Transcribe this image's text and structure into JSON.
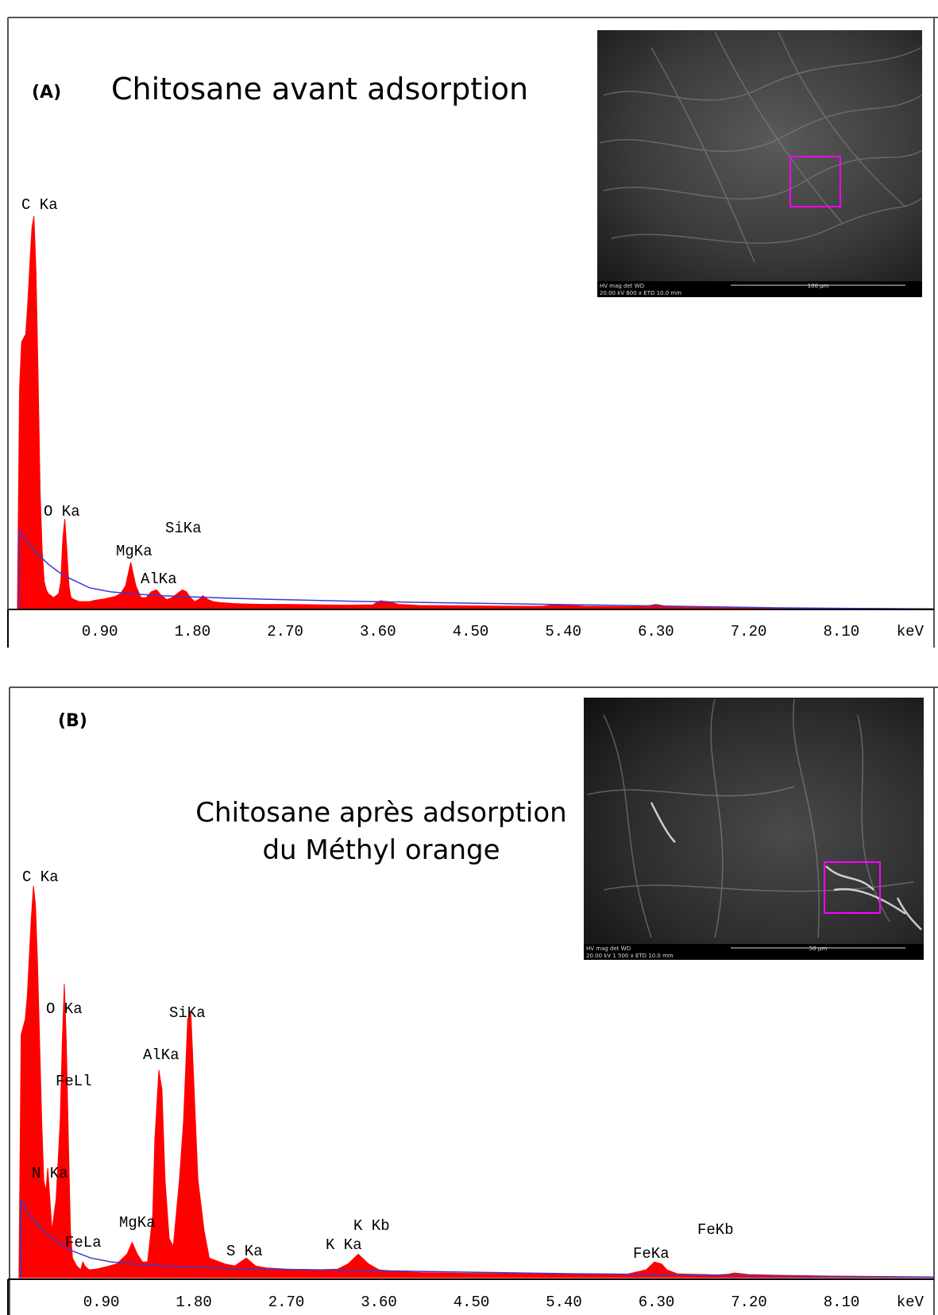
{
  "colors": {
    "spectrum_fill": "#ff0000",
    "background_curve": "#3a3ad0",
    "axis": "#000000",
    "roi_box": "#ff00ff"
  },
  "chart_data": [
    {
      "type": "area",
      "panel_label": "(A)",
      "title": "Chitosane avant adsorption",
      "xlabel": "keV",
      "ylabel": "",
      "x_ticks": [
        "0.90",
        "1.80",
        "2.70",
        "3.60",
        "4.50",
        "5.40",
        "6.30",
        "7.20",
        "8.10"
      ],
      "xlim": [
        0.1,
        9.0
      ],
      "ylim": [
        0,
        100
      ],
      "grid": false,
      "series": [
        {
          "x": [
            0.1,
            0.12,
            0.14,
            0.16,
            0.18,
            0.2,
            0.22,
            0.24,
            0.26,
            0.28,
            0.3,
            0.32,
            0.34,
            0.36,
            0.38,
            0.4,
            0.45,
            0.5,
            0.52,
            0.54,
            0.56,
            0.58,
            0.6,
            0.62,
            0.65,
            0.7,
            0.75,
            0.8,
            0.85,
            0.9,
            0.95,
            1.0,
            1.05,
            1.1,
            1.15,
            1.2,
            1.25,
            1.3,
            1.35,
            1.4,
            1.45,
            1.5,
            1.55,
            1.6,
            1.65,
            1.7,
            1.74,
            1.78,
            1.82,
            1.86,
            1.9,
            1.95,
            2.0,
            2.05,
            2.1,
            2.15,
            2.2,
            2.3,
            2.5,
            2.7,
            3.0,
            3.3,
            3.55,
            3.62,
            3.7,
            3.8,
            4.0,
            4.5,
            5.0,
            5.2,
            5.35,
            5.45,
            5.6,
            6.0,
            6.2,
            6.3,
            6.4,
            6.6,
            7.0,
            7.2,
            8.0,
            9.0
          ],
          "y": [
            2,
            56,
            68,
            69,
            70,
            78,
            88,
            97,
            100,
            86,
            60,
            30,
            15,
            7,
            5,
            4,
            3,
            4,
            7,
            18,
            23,
            15,
            6,
            3,
            2.5,
            2,
            2,
            2,
            2.3,
            2.5,
            2.7,
            3,
            3.3,
            4,
            6,
            12,
            6,
            3,
            3,
            4.5,
            5,
            3.5,
            2.5,
            3,
            4,
            5,
            4.5,
            3,
            2,
            2.5,
            3.5,
            2.5,
            2,
            1.8,
            1.7,
            1.6,
            1.5,
            1.4,
            1.3,
            1.3,
            1.2,
            1.1,
            1.2,
            2.2,
            2,
            1.3,
            1,
            0.9,
            0.8,
            0.8,
            1.3,
            1.1,
            0.8,
            0.7,
            0.8,
            1.3,
            0.8,
            0.6,
            0.5,
            0.4,
            0.3,
            0.2
          ]
        },
        {
          "x": [
            0.12,
            0.2,
            0.3,
            0.4,
            0.5,
            0.6,
            0.8,
            1.0,
            1.2,
            1.5,
            1.8,
            2.1,
            2.5,
            3.0,
            3.5,
            4.0,
            4.5,
            5.0,
            5.5,
            6.0,
            6.5,
            7.0,
            7.5,
            8.0,
            9.0
          ],
          "y": [
            20,
            17,
            14,
            11.5,
            9.5,
            8,
            5.5,
            4.5,
            4,
            3.5,
            3.2,
            2.9,
            2.6,
            2.3,
            2,
            1.8,
            1.6,
            1.4,
            1.2,
            1,
            0.8,
            0.6,
            0.4,
            0.3,
            0.1
          ]
        }
      ],
      "peak_labels": [
        {
          "text": "C Ka",
          "x": 0.3
        },
        {
          "text": "O Ka",
          "x": 0.56
        },
        {
          "text": "MgKa",
          "x": 1.25
        },
        {
          "text": "AlKa",
          "x": 1.49
        },
        {
          "text": "SiKa",
          "x": 1.74
        }
      ],
      "inset": {
        "scale_header": "HV  mag  det  WD",
        "scale_values": "20.00 kV  800 x  ETD  10.0 mm",
        "scale_bar": "100 µm"
      }
    },
    {
      "type": "area",
      "panel_label": "(B)",
      "title": "Chitosane après adsorption du Méthyl orange",
      "title_lines": [
        "Chitosane après adsorption",
        "du Méthyl orange"
      ],
      "xlabel": "keV",
      "ylabel": "",
      "x_ticks": [
        "0.90",
        "1.80",
        "2.70",
        "3.60",
        "4.50",
        "5.40",
        "6.30",
        "7.20",
        "8.10"
      ],
      "xlim": [
        0.1,
        9.0
      ],
      "ylim": [
        0,
        100
      ],
      "grid": false,
      "series": [
        {
          "x": [
            0.1,
            0.12,
            0.14,
            0.16,
            0.18,
            0.2,
            0.22,
            0.24,
            0.26,
            0.28,
            0.3,
            0.32,
            0.34,
            0.36,
            0.38,
            0.4,
            0.42,
            0.46,
            0.5,
            0.52,
            0.54,
            0.56,
            0.58,
            0.6,
            0.62,
            0.66,
            0.7,
            0.72,
            0.74,
            0.78,
            0.85,
            0.95,
            1.05,
            1.15,
            1.2,
            1.25,
            1.3,
            1.35,
            1.4,
            1.42,
            1.46,
            1.49,
            1.52,
            1.56,
            1.6,
            1.66,
            1.7,
            1.74,
            1.77,
            1.8,
            1.84,
            1.9,
            1.95,
            2.1,
            2.2,
            2.31,
            2.4,
            2.5,
            2.7,
            3.0,
            3.2,
            3.3,
            3.4,
            3.5,
            3.6,
            3.8,
            4.0,
            4.5,
            5.0,
            5.5,
            6.0,
            6.2,
            6.28,
            6.35,
            6.4,
            6.5,
            6.6,
            6.9,
            7.0,
            7.06,
            7.2,
            7.5,
            8.0,
            9.0
          ],
          "y": [
            2,
            62,
            64,
            66,
            72,
            82,
            92,
            100,
            95,
            80,
            60,
            40,
            25,
            22,
            28,
            20,
            12,
            20,
            40,
            60,
            75,
            60,
            35,
            12,
            5,
            3,
            2,
            4,
            3,
            2,
            2.2,
            2.8,
            3.5,
            6,
            9,
            6,
            4,
            4,
            16,
            35,
            53,
            48,
            25,
            10,
            8,
            25,
            40,
            66,
            68,
            50,
            25,
            12,
            5,
            3.5,
            3,
            5,
            3,
            2.5,
            2.2,
            2,
            2.2,
            3.5,
            6,
            3.5,
            2,
            1.5,
            1.3,
            1.1,
            1,
            0.9,
            0.8,
            2,
            4,
            3.5,
            2,
            1,
            0.9,
            0.7,
            0.9,
            1.2,
            0.8,
            0.6,
            0.4,
            0.2
          ]
        },
        {
          "x": [
            0.12,
            0.2,
            0.3,
            0.4,
            0.5,
            0.6,
            0.8,
            1.0,
            1.2,
            1.5,
            1.8,
            2.1,
            2.5,
            3.0,
            3.5,
            4.0,
            4.5,
            5.0,
            5.5,
            6.0,
            6.5,
            7.0,
            7.5,
            8.0,
            9.0
          ],
          "y": [
            20,
            16,
            13,
            10.5,
            8.5,
            7,
            5,
            4,
            3.5,
            3,
            2.7,
            2.4,
            2.2,
            2,
            1.8,
            1.6,
            1.4,
            1.2,
            1,
            0.9,
            0.7,
            0.5,
            0.4,
            0.3,
            0.1
          ]
        }
      ],
      "peak_labels": [
        {
          "text": "C Ka",
          "x": 0.27
        },
        {
          "text": "O Ka",
          "x": 0.56
        },
        {
          "text": "FeLl",
          "x": 0.7
        },
        {
          "text": "N Ka",
          "x": 0.39
        },
        {
          "text": "FeLa",
          "x": 0.71
        },
        {
          "text": "MgKa",
          "x": 1.25
        },
        {
          "text": "AlKa",
          "x": 1.49
        },
        {
          "text": "SiKa",
          "x": 1.74
        },
        {
          "text": "S Ka",
          "x": 2.31
        },
        {
          "text": "K Ka",
          "x": 3.31
        },
        {
          "text": "K Kb",
          "x": 3.59
        },
        {
          "text": "FeKa",
          "x": 6.4
        },
        {
          "text": "FeKb",
          "x": 7.06
        }
      ],
      "inset": {
        "scale_header": "HV  mag  det  WD",
        "scale_values": "20.00 kV  1 500 x  ETD  10.0 mm",
        "scale_bar": "50 µm"
      }
    }
  ]
}
